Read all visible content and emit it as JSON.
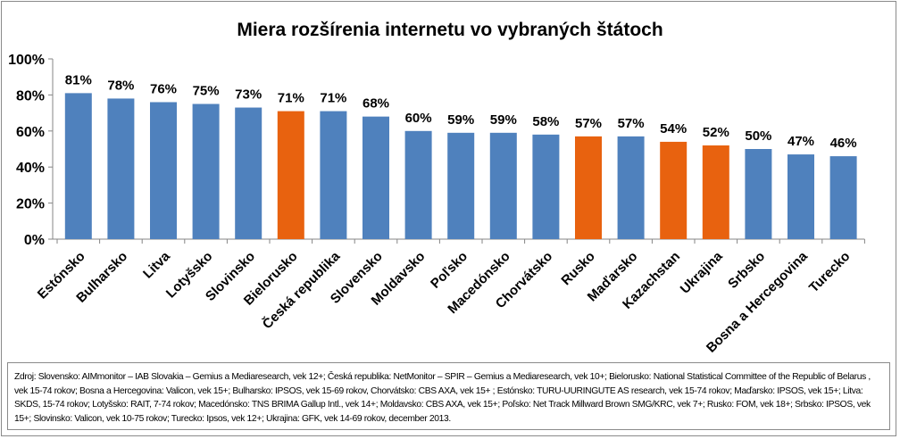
{
  "chart_data": {
    "type": "bar",
    "title": "Miera rozšírenia internetu vo vybraných štátoch",
    "xlabel": "",
    "ylabel": "",
    "ylim": [
      0,
      100
    ],
    "yticks": [
      "0%",
      "20%",
      "40%",
      "60%",
      "80%",
      "100%"
    ],
    "grid": false,
    "legend": "none",
    "categories": [
      "Estónsko",
      "Bulharsko",
      "Litva",
      "Lotyšsko",
      "Slovinsko",
      "Bielorusko",
      "Česká republika",
      "Slovensko",
      "Moldavsko",
      "Poľsko",
      "Macedónsko",
      "Chorvátsko",
      "Rusko",
      "Maďarsko",
      "Kazachstan",
      "Ukrajina",
      "Srbsko",
      "Bosna a Hercegovina",
      "Turecko"
    ],
    "values": [
      81,
      78,
      76,
      75,
      73,
      71,
      71,
      68,
      60,
      59,
      59,
      58,
      57,
      57,
      54,
      52,
      50,
      47,
      46
    ],
    "data_labels": [
      "81%",
      "78%",
      "76%",
      "75%",
      "73%",
      "71%",
      "71%",
      "68%",
      "60%",
      "59%",
      "59%",
      "58%",
      "57%",
      "57%",
      "54%",
      "52%",
      "50%",
      "47%",
      "46%"
    ],
    "highlighted": [
      "Bielorusko",
      "Rusko",
      "Kazachstan",
      "Ukrajina"
    ]
  },
  "colors": {
    "bar": "#4f81bd",
    "highlight": "#e8620f",
    "axis": "#868686"
  },
  "footnote": "Zdroj: Slovensko: AIMmonitor – IAB Slovakia – Gemius a Mediaresearch, vek 12+; Česká republika: NetMonitor – SPIR – Gemius a Mediaresearch, vek 10+; Bielorusko: National Statistical Committee of the Republic of Belarus , vek 15-74 rokov; Bosna a Hercegovina: Valicon, vek 15+;  Bulharsko: IPSOS, vek 15-69 rokov, Chorvátsko:  CBS AXA, vek 15+ ; Estónsko: TURU-UURINGUTE AS research, vek 15-74 rokov; Maďarsko: IPSOS, vek 15+; Litva: SKDS, 15-74 rokov; Lotyšsko: RAIT, 7-74 rokov; Macedónsko: TNS BRIMA Gallup Intl., vek 14+;  Moldavsko: CBS AXA, vek 15+;  Poľsko: Net Track Millward Brown SMG/KRC, vek 7+; Rusko: FOM, vek 18+; Srbsko: IPSOS, vek 15+; Slovinsko: Valicon, vek 10-75 rokov; Turecko: Ipsos, vek 12+; Ukrajina: GFK, vek 14-69 rokov, december 2013."
}
